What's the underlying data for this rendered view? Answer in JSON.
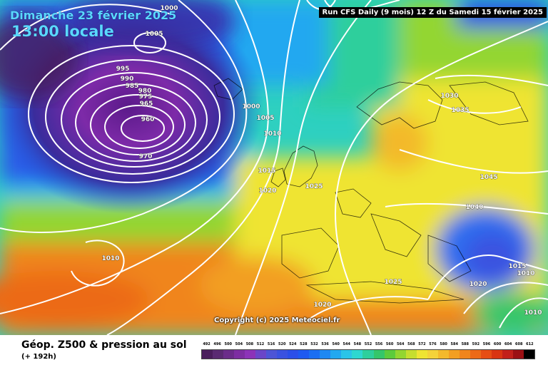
{
  "header": {
    "date": "Dimanche 23 février 2025",
    "time": "13:00 locale",
    "run_info": "Run CFS Daily (9 mois) 12 Z du Samedi 15 février 2025"
  },
  "map": {
    "copyright": "Copyright (c) 2025 Meteociel.fr",
    "isobar_labels": [
      "1000",
      "1005",
      "995",
      "990",
      "985",
      "980",
      "975",
      "965",
      "960",
      "970",
      "1000",
      "1005",
      "1010",
      "1015",
      "1020",
      "1025",
      "1010",
      "1030",
      "1035",
      "1045",
      "1040",
      "1025",
      "1020",
      "1015",
      "1010",
      "1020",
      "1010"
    ],
    "colors": {
      "low_center": "#7a1f93",
      "atlantic_blue": "#1e7cf2",
      "high_yellow": "#f4e23c",
      "subtropical_orange": "#f58a1c",
      "isobar": "#ffffff"
    }
  },
  "footer": {
    "title": "Géop. Z500 & pression au sol",
    "subtitle": "(+ 192h)"
  },
  "legend": {
    "values": [
      "492",
      "496",
      "500",
      "504",
      "508",
      "512",
      "516",
      "520",
      "524",
      "528",
      "532",
      "536",
      "540",
      "544",
      "548",
      "552",
      "556",
      "560",
      "564",
      "568",
      "572",
      "576",
      "580",
      "584",
      "588",
      "592",
      "596",
      "600",
      "604",
      "608",
      "612"
    ],
    "colors": [
      "#4a1e5c",
      "#5a2a72",
      "#6b2c8a",
      "#7d2ea2",
      "#8c33b8",
      "#6a46c8",
      "#4d55d6",
      "#3a52e0",
      "#2b4fe8",
      "#1e5af0",
      "#1a6ef2",
      "#1e88f2",
      "#22a8f0",
      "#2ac4e8",
      "#2ed7d0",
      "#2ecf9c",
      "#35c66a",
      "#5ccb3c",
      "#93d630",
      "#c6de2e",
      "#efe433",
      "#f4d23a",
      "#f3b92c",
      "#f29f22",
      "#f0851c",
      "#ec6a18",
      "#e64e14",
      "#d93512",
      "#c2201a",
      "#9b1014",
      "#000000"
    ]
  }
}
